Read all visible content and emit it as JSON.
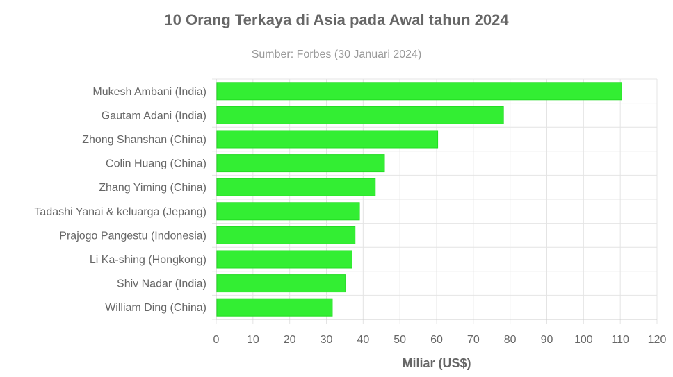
{
  "chart_data": {
    "type": "bar",
    "orientation": "horizontal",
    "title": "10 Orang Terkaya di Asia pada Awal tahun 2024",
    "subtitle": "Sumber: Forbes (30 Januari 2024)",
    "xlabel": "Miliar (US$)",
    "ylabel": "",
    "xlim": [
      0,
      120
    ],
    "xticks": [
      0,
      10,
      20,
      30,
      40,
      50,
      60,
      70,
      80,
      90,
      100,
      110,
      120
    ],
    "grid": true,
    "bar_color": "#33ee33",
    "bar_border": "#22dd22",
    "categories": [
      "Mukesh Ambani (India)",
      "Gautam Adani (India)",
      "Zhong Shanshan (China)",
      "Colin Huang (China)",
      "Zhang Yiming (China)",
      "Tadashi Yanai & keluarga (Jepang)",
      "Prajogo Pangestu (Indonesia)",
      "Li Ka-shing (Hongkong)",
      "Shiv Nadar (India)",
      "William Ding (China)"
    ],
    "values": [
      110.4,
      78.2,
      60.3,
      45.8,
      43.3,
      39.0,
      37.8,
      37.0,
      35.1,
      31.6
    ]
  }
}
